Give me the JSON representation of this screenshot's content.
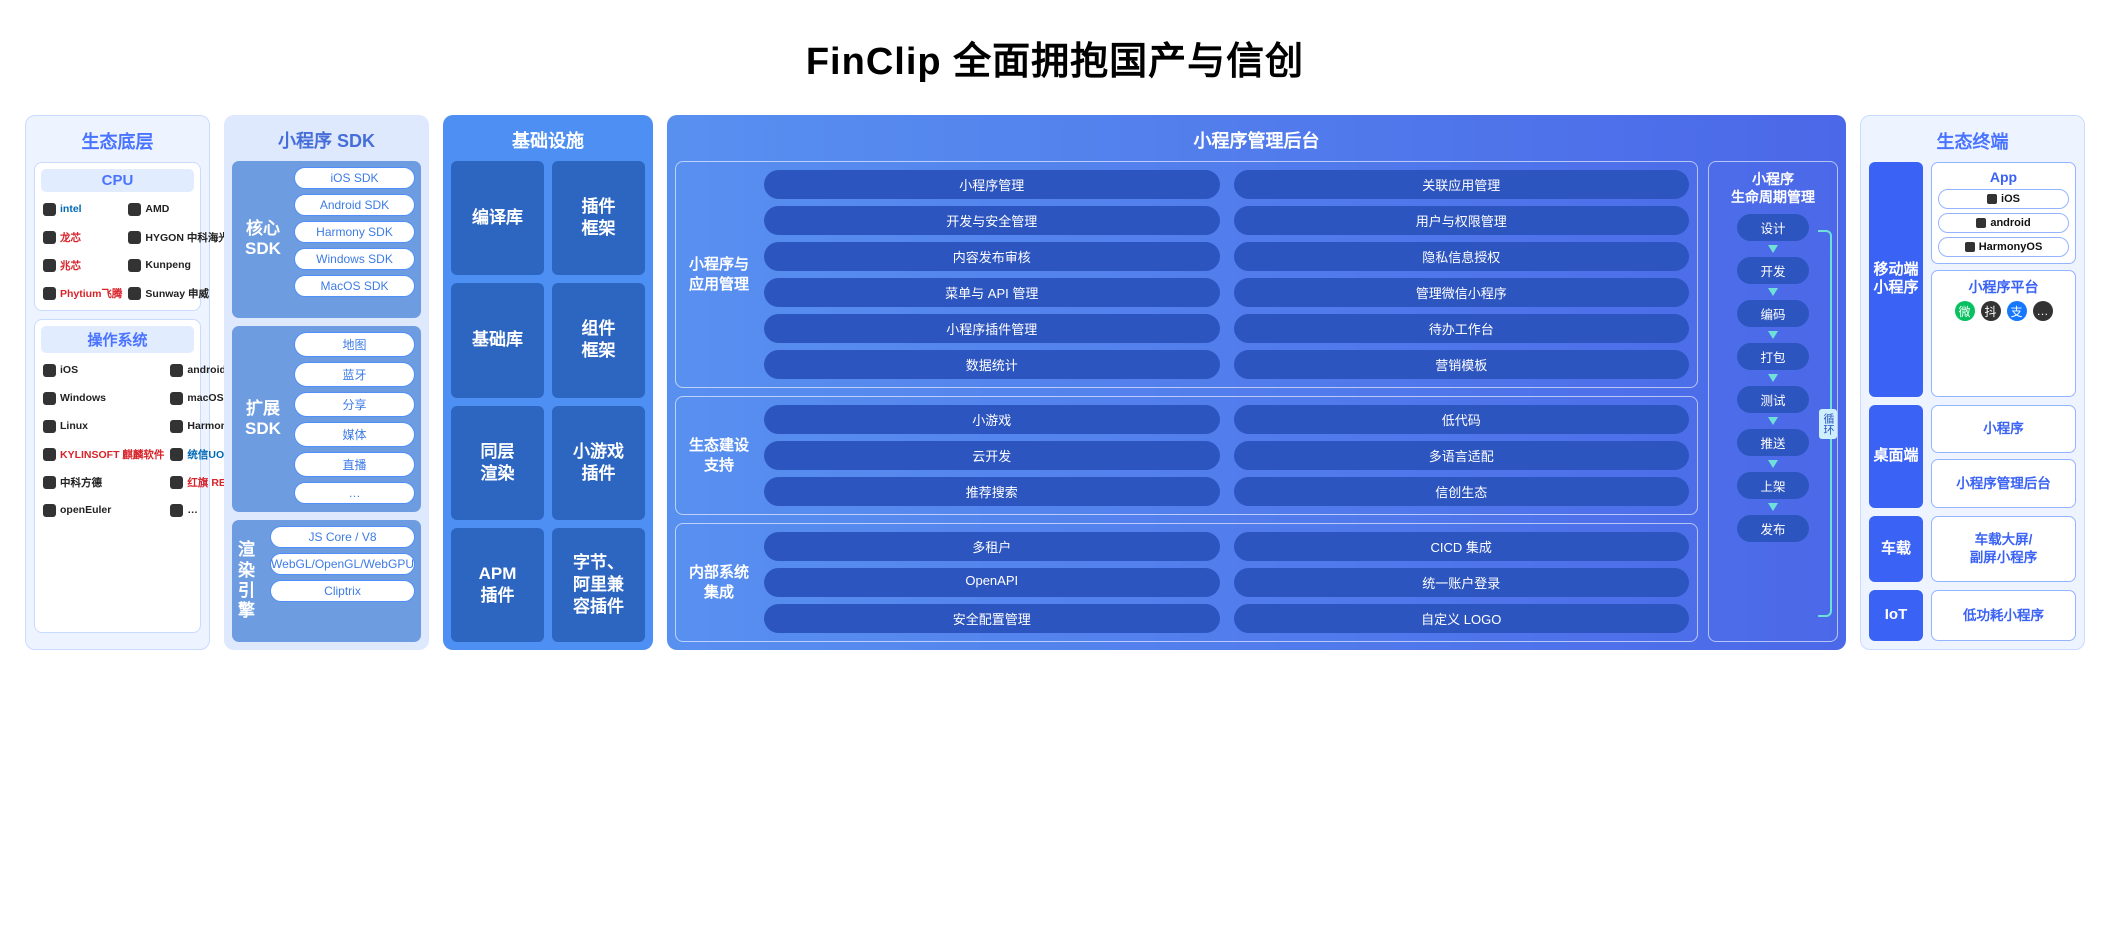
{
  "title": "FinClip 全面拥抱国产与信创",
  "colors": {
    "light_bg": "#eef4ff",
    "light_border": "#c9dbff",
    "accent_text": "#4a74ff",
    "sdk_bg": "#dfe9fd",
    "sdk_row_bg": "#6d9ce0",
    "sdk_item_border": "#4f8ff7",
    "infra_bg": "#4d8ff2",
    "infra_box": "#2d66c0",
    "mgmt_grad_from": "#5890f0",
    "mgmt_grad_to": "#4b68e8",
    "pill_bg": "#2d55c0",
    "term_accent": "#3a62f4",
    "term_border": "#95b4ff",
    "life_arrow": "#6fe0d8"
  },
  "col1": {
    "header": "生态底层",
    "cpu": {
      "title": "CPU",
      "items": [
        "intel",
        "AMD",
        "龙芯",
        "HYGON 中科海光",
        "兆芯",
        "Kunpeng",
        "Phytium飞腾",
        "Sunway 申威"
      ]
    },
    "os": {
      "title": "操作系统",
      "items": [
        "iOS",
        "android",
        "Windows",
        "macOS",
        "Linux",
        "HarmonyOS",
        "KYLINSOFT 麒麟软件",
        "统信UOS",
        "中科方德",
        "红旗 REDFLAG",
        "openEuler",
        "…"
      ]
    }
  },
  "col2": {
    "header": "小程序 SDK",
    "rows": [
      {
        "label_l1": "核心",
        "label_l2": "SDK",
        "items": [
          "iOS SDK",
          "Android SDK",
          "Harmony SDK",
          "Windows SDK",
          "MacOS SDK"
        ]
      },
      {
        "label_l1": "扩展",
        "label_l2": "SDK",
        "items": [
          "地图",
          "蓝牙",
          "分享",
          "媒体",
          "直播",
          "…"
        ]
      },
      {
        "label_l1": "渲染",
        "label_l2": "引擎",
        "items": [
          "JS Core / V8",
          "WebGL/OpenGL/WebGPU",
          "Cliptrix"
        ]
      }
    ]
  },
  "col3": {
    "header": "基础设施",
    "boxes": [
      "编译库",
      "插件\n框架",
      "基础库",
      "组件\n框架",
      "同层\n渲染",
      "小游戏\n插件",
      "APM\n插件",
      "字节、\n阿里兼\n容插件"
    ]
  },
  "col4": {
    "header": "小程序管理后台",
    "groups": [
      {
        "label": "小程序与\n应用管理",
        "pills": [
          "小程序管理",
          "关联应用管理",
          "开发与安全管理",
          "用户与权限管理",
          "内容发布审核",
          "隐私信息授权",
          "菜单与 API 管理",
          "管理微信小程序",
          "小程序插件管理",
          "待办工作台",
          "数据统计",
          "营销模板"
        ]
      },
      {
        "label": "生态建设\n支持",
        "pills": [
          "小游戏",
          "低代码",
          "云开发",
          "多语言适配",
          "推荐搜索",
          "信创生态"
        ]
      },
      {
        "label": "内部系统\n集成",
        "pills": [
          "多租户",
          "CICD 集成",
          "OpenAPI",
          "统一账户登录",
          "安全配置管理",
          "自定义 LOGO"
        ]
      }
    ],
    "lifecycle": {
      "title_l1": "小程序",
      "title_l2": "生命周期管理",
      "loop_label": "循环",
      "steps": [
        "设计",
        "开发",
        "编码",
        "打包",
        "测试",
        "推送",
        "上架",
        "发布"
      ]
    }
  },
  "col6": {
    "header": "生态终端",
    "mobile": {
      "label": "移动端\n小程序",
      "app": {
        "title": "App",
        "os": [
          "iOS",
          "android",
          "HarmonyOS"
        ]
      },
      "platform": {
        "title": "小程序平台",
        "icons": [
          "微",
          "抖",
          "支",
          "…"
        ]
      }
    },
    "desktop": {
      "label": "桌面端",
      "boxes": [
        "小程序",
        "小程序管理后台"
      ]
    },
    "car": {
      "label": "车载",
      "boxes": [
        "车载大屏/\n副屏小程序"
      ]
    },
    "iot": {
      "label": "IoT",
      "boxes": [
        "低功耗小程序"
      ]
    }
  }
}
